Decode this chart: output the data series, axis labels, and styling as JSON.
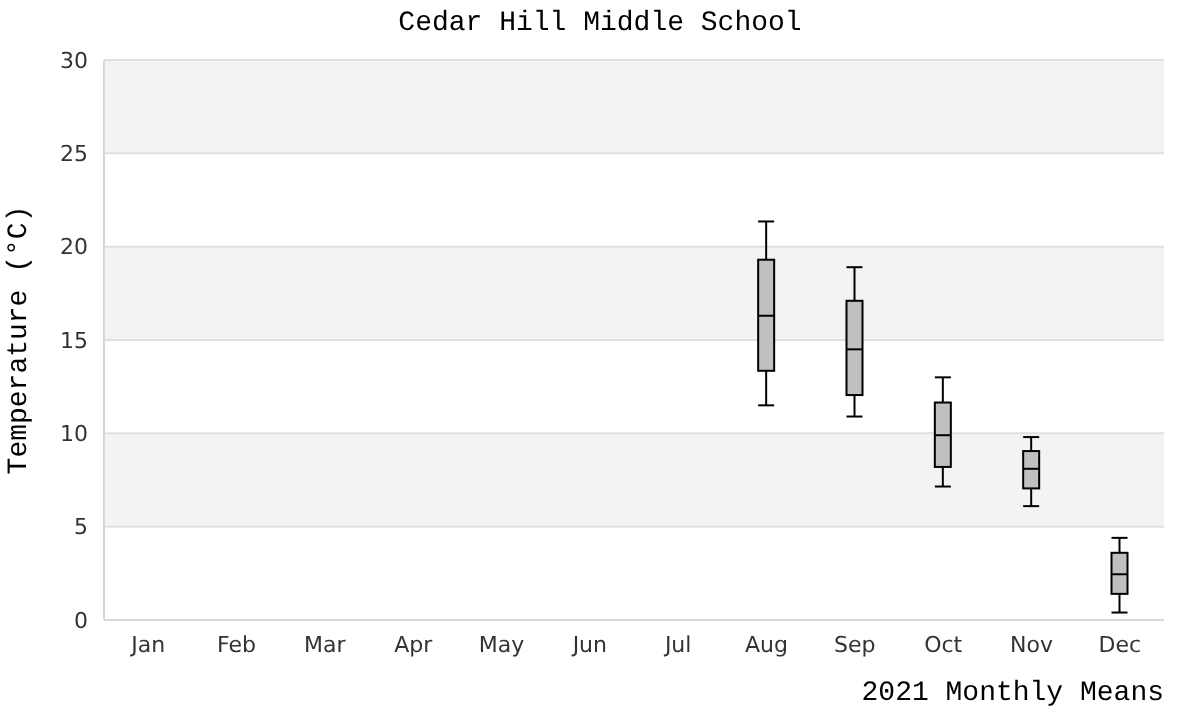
{
  "chart_data": {
    "type": "box",
    "title": "Cedar Hill Middle School",
    "xlabel": "2021 Monthly Means",
    "ylabel": "Temperature (°C)",
    "categories": [
      "Jan",
      "Feb",
      "Mar",
      "Apr",
      "May",
      "Jun",
      "Jul",
      "Aug",
      "Sep",
      "Oct",
      "Nov",
      "Dec"
    ],
    "boxes": [
      null,
      null,
      null,
      null,
      null,
      null,
      null,
      {
        "low": 11.5,
        "q1": 13.35,
        "median": 16.3,
        "q3": 19.3,
        "high": 21.35
      },
      {
        "low": 10.9,
        "q1": 12.05,
        "median": 14.5,
        "q3": 17.1,
        "high": 18.9
      },
      {
        "low": 7.15,
        "q1": 8.2,
        "median": 9.9,
        "q3": 11.65,
        "high": 13.0
      },
      {
        "low": 6.1,
        "q1": 7.05,
        "median": 8.1,
        "q3": 9.05,
        "high": 9.8
      },
      {
        "low": 0.4,
        "q1": 1.4,
        "median": 2.45,
        "q3": 3.6,
        "high": 4.4
      }
    ],
    "color": "#c0c0c0",
    "ylim": [
      0,
      30
    ],
    "yticks": [
      0,
      5,
      10,
      15,
      20,
      25,
      30
    ],
    "grid": "y"
  }
}
